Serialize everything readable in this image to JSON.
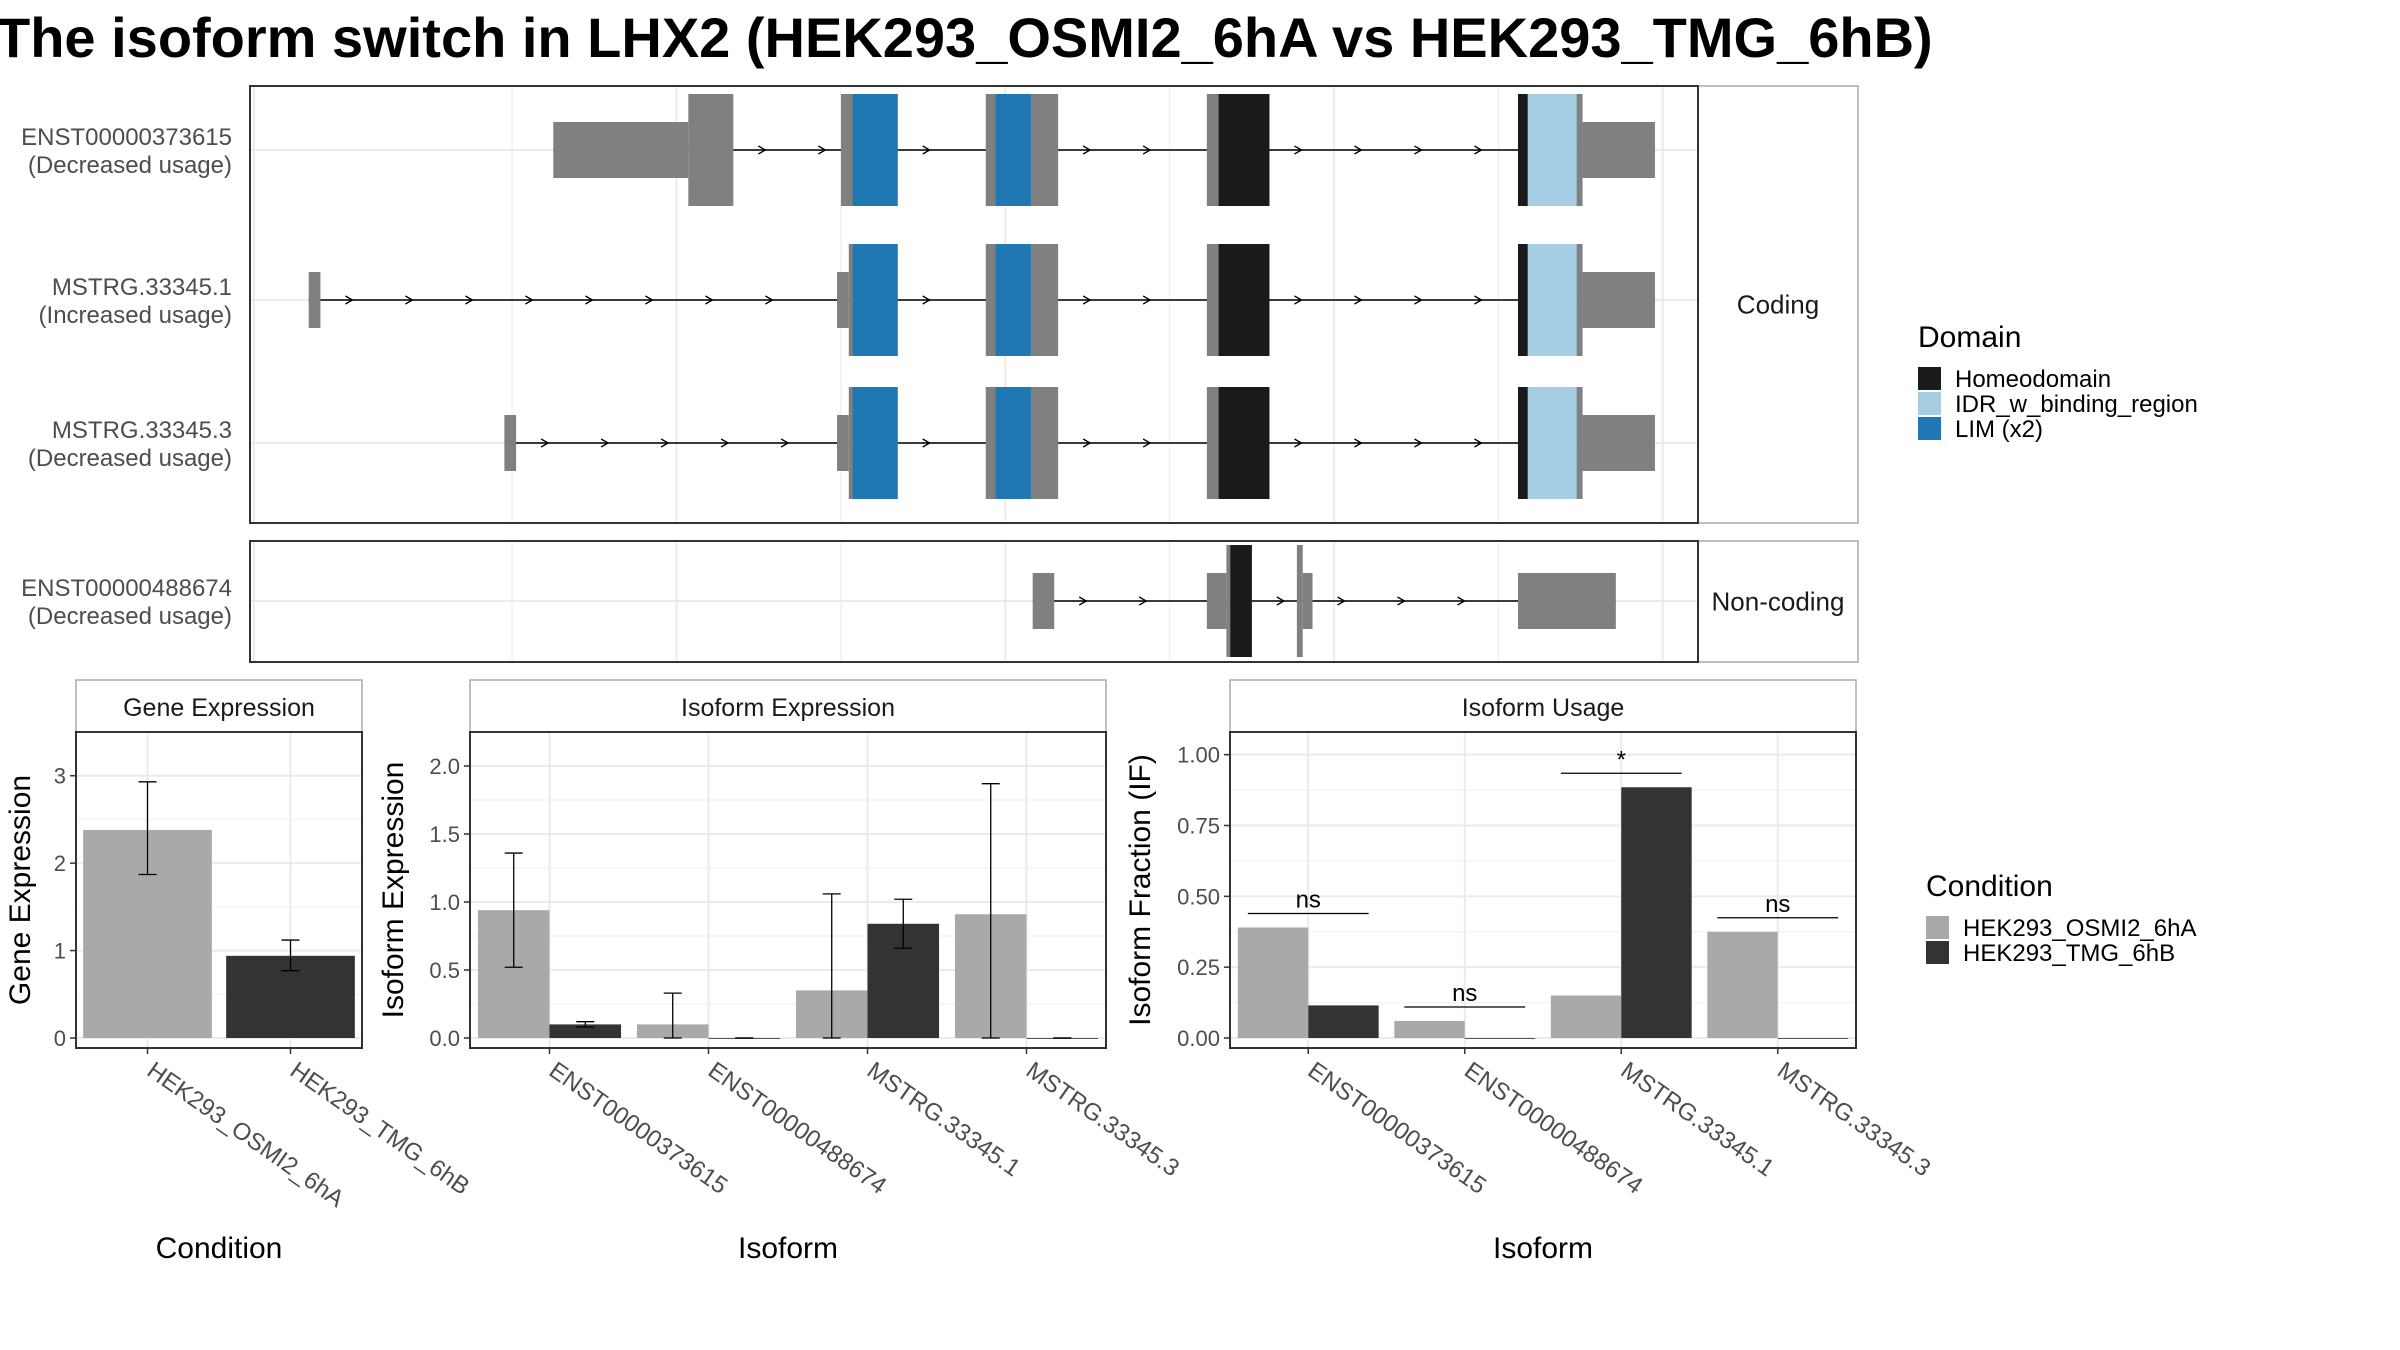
{
  "title": "The isoform switch in LHX2 (HEK293_OSMI2_6hA vs HEK293_TMG_6hB)",
  "colors": {
    "Homeodomain": "#1a1a1a",
    "IDR_w_binding_region": "#a6cee3",
    "LIM (x2)": "#1f78b4",
    "exon": "#808080",
    "cond_a": "#a9a9a9",
    "cond_b": "#333333"
  },
  "structure": {
    "panel_labels": [
      "Coding",
      "Non-coding"
    ],
    "transcripts": [
      {
        "name": "ENST00000373615",
        "usage": "(Decreased usage)",
        "panel": "Coding",
        "exons": [
          {
            "start": 123855,
            "end": 123924,
            "type": "utr"
          },
          {
            "start": 123924,
            "end": 123947,
            "type": "cds"
          },
          {
            "start": 124002,
            "end": 124031,
            "type": "cds"
          },
          {
            "start": 124076,
            "end": 124113,
            "type": "cds"
          },
          {
            "start": 124189,
            "end": 124221,
            "type": "cds"
          },
          {
            "start": 124348,
            "end": 124381,
            "type": "cds"
          },
          {
            "start": 124381,
            "end": 124418,
            "type": "utr"
          }
        ],
        "domains": [
          {
            "name": "LIM (x2)",
            "start": 124008,
            "end": 124031
          },
          {
            "name": "LIM (x2)",
            "start": 124081,
            "end": 124099
          },
          {
            "name": "Homeodomain",
            "start": 124195,
            "end": 124221
          },
          {
            "name": "Homeodomain",
            "start": 124348,
            "end": 124353
          },
          {
            "name": "IDR_w_binding_region",
            "start": 124353,
            "end": 124378
          }
        ]
      },
      {
        "name": "MSTRG.33345.1",
        "usage": "(Increased usage)",
        "panel": "Coding",
        "exons": [
          {
            "start": 123730,
            "end": 123736,
            "type": "utr"
          },
          {
            "start": 124000,
            "end": 124006,
            "type": "utr"
          },
          {
            "start": 124006,
            "end": 124031,
            "type": "cds"
          },
          {
            "start": 124076,
            "end": 124113,
            "type": "cds"
          },
          {
            "start": 124189,
            "end": 124221,
            "type": "cds"
          },
          {
            "start": 124348,
            "end": 124381,
            "type": "cds"
          },
          {
            "start": 124381,
            "end": 124418,
            "type": "utr"
          }
        ],
        "domains": [
          {
            "name": "LIM (x2)",
            "start": 124008,
            "end": 124031
          },
          {
            "name": "LIM (x2)",
            "start": 124081,
            "end": 124099
          },
          {
            "name": "Homeodomain",
            "start": 124195,
            "end": 124221
          },
          {
            "name": "Homeodomain",
            "start": 124348,
            "end": 124353
          },
          {
            "name": "IDR_w_binding_region",
            "start": 124353,
            "end": 124378
          }
        ]
      },
      {
        "name": "MSTRG.33345.3",
        "usage": "(Decreased usage)",
        "panel": "Coding",
        "exons": [
          {
            "start": 123830,
            "end": 123836,
            "type": "utr"
          },
          {
            "start": 124000,
            "end": 124006,
            "type": "utr"
          },
          {
            "start": 124006,
            "end": 124031,
            "type": "cds"
          },
          {
            "start": 124076,
            "end": 124113,
            "type": "cds"
          },
          {
            "start": 124189,
            "end": 124221,
            "type": "cds"
          },
          {
            "start": 124348,
            "end": 124381,
            "type": "cds"
          },
          {
            "start": 124381,
            "end": 124418,
            "type": "utr"
          }
        ],
        "domains": [
          {
            "name": "LIM (x2)",
            "start": 124008,
            "end": 124031
          },
          {
            "name": "LIM (x2)",
            "start": 124081,
            "end": 124099
          },
          {
            "name": "Homeodomain",
            "start": 124195,
            "end": 124221
          },
          {
            "name": "Homeodomain",
            "start": 124348,
            "end": 124353
          },
          {
            "name": "IDR_w_binding_region",
            "start": 124353,
            "end": 124378
          }
        ]
      },
      {
        "name": "ENST00000488674",
        "usage": "(Decreased usage)",
        "panel": "Non-coding",
        "exons": [
          {
            "start": 124100,
            "end": 124111,
            "type": "utr"
          },
          {
            "start": 124189,
            "end": 124199,
            "type": "utr"
          },
          {
            "start": 124199,
            "end": 124212,
            "type": "cds"
          },
          {
            "start": 124235,
            "end": 124238,
            "type": "cds"
          },
          {
            "start": 124238,
            "end": 124243,
            "type": "utr"
          },
          {
            "start": 124348,
            "end": 124398,
            "type": "utr"
          }
        ],
        "domains": [
          {
            "name": "Homeodomain",
            "start": 124201,
            "end": 124212
          }
        ]
      }
    ]
  },
  "legend_domain": {
    "title": "Domain",
    "items": [
      "Homeodomain",
      "IDR_w_binding_region",
      "LIM (x2)"
    ]
  },
  "legend_condition": {
    "title": "Condition",
    "items": [
      "HEK293_OSMI2_6hA",
      "HEK293_TMG_6hB"
    ]
  },
  "chart_data": [
    {
      "type": "bar",
      "title": "Gene Expression",
      "xlabel": "Condition",
      "ylabel": "Gene Expression",
      "categories": [
        "HEK293_OSMI2_6hA",
        "HEK293_TMG_6hB"
      ],
      "values": [
        2.38,
        0.94
      ],
      "err_low": [
        1.87,
        0.77
      ],
      "err_high": [
        2.93,
        1.12
      ],
      "ylim": [
        0,
        3.5
      ],
      "yticks": [
        0,
        1,
        2,
        3
      ],
      "grid": true
    },
    {
      "type": "bar",
      "title": "Isoform Expression",
      "xlabel": "Isoform",
      "ylabel": "Isoform Expression",
      "categories": [
        "ENST00000373615",
        "ENST00000488674",
        "MSTRG.33345.1",
        "MSTRG.33345.3"
      ],
      "series": [
        {
          "name": "HEK293_OSMI2_6hA",
          "values": [
            0.94,
            0.1,
            0.35,
            0.91
          ],
          "err_low": [
            0.52,
            0.0,
            0.0,
            0.0
          ],
          "err_high": [
            1.36,
            0.33,
            1.06,
            1.87
          ]
        },
        {
          "name": "HEK293_TMG_6hB",
          "values": [
            0.1,
            0.0,
            0.84,
            0.0
          ],
          "err_low": [
            0.08,
            0.0,
            0.66,
            0.0
          ],
          "err_high": [
            0.12,
            0.0,
            1.02,
            0.0
          ]
        }
      ],
      "ylim": [
        0,
        2.25
      ],
      "yticks": [
        0.0,
        0.5,
        1.0,
        1.5,
        2.0
      ],
      "grid": true
    },
    {
      "type": "bar",
      "title": "Isoform Usage",
      "xlabel": "Isoform",
      "ylabel": "Isoform Fraction (IF)",
      "categories": [
        "ENST00000373615",
        "ENST00000488674",
        "MSTRG.33345.1",
        "MSTRG.33345.3"
      ],
      "series": [
        {
          "name": "HEK293_OSMI2_6hA",
          "values": [
            0.39,
            0.06,
            0.15,
            0.375
          ]
        },
        {
          "name": "HEK293_TMG_6hB",
          "values": [
            0.115,
            0.0,
            0.885,
            0.0
          ]
        }
      ],
      "significance": [
        "ns",
        "ns",
        "*",
        "ns"
      ],
      "ylim": [
        0,
        1.08
      ],
      "yticks": [
        0.0,
        0.25,
        0.5,
        0.75,
        1.0
      ],
      "grid": true
    }
  ]
}
